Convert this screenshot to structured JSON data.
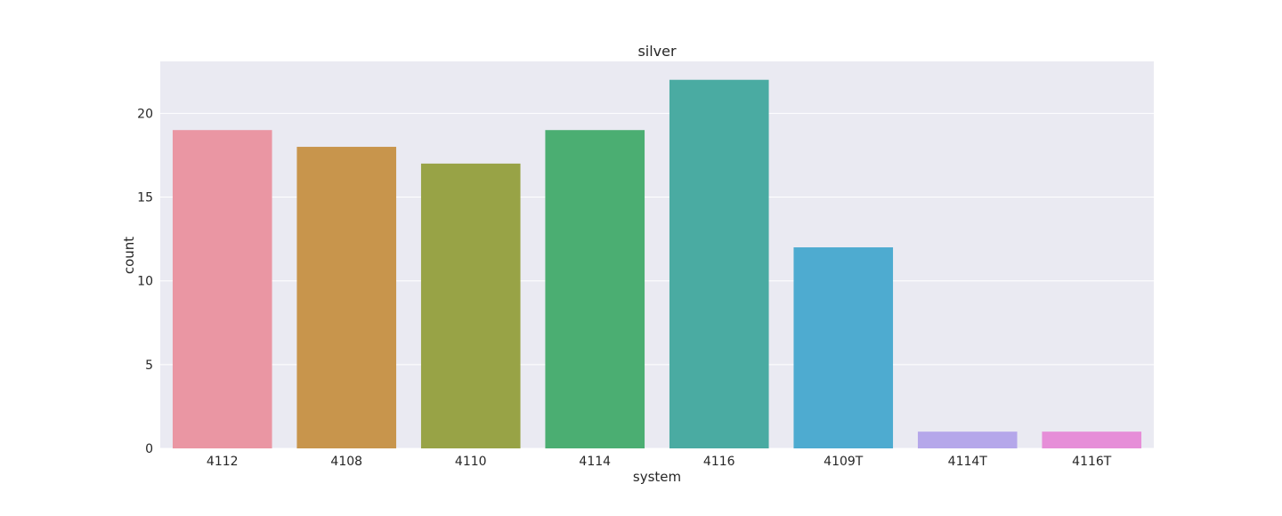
{
  "chart_data": {
    "type": "bar",
    "title": "silver",
    "xlabel": "system",
    "ylabel": "count",
    "categories": [
      "4112",
      "4108",
      "4110",
      "4114",
      "4116",
      "4109T",
      "4114T",
      "4116T"
    ],
    "values": [
      19,
      18,
      17,
      19,
      22,
      12,
      1,
      1
    ],
    "colors": [
      "#ea96a3",
      "#c8954c",
      "#98a346",
      "#4bae72",
      "#4aaba2",
      "#4eabd0",
      "#b5a7ea",
      "#e68ed8"
    ],
    "ylim": [
      0,
      23.1
    ],
    "yticks": [
      0,
      5,
      10,
      15,
      20
    ],
    "grid": true,
    "background": "#eaeaf2",
    "grid_color": "#ffffff"
  }
}
